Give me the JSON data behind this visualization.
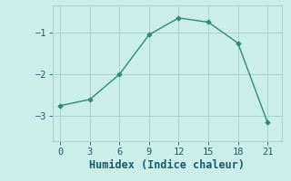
{
  "x": [
    0,
    3,
    6,
    9,
    12,
    15,
    18,
    21
  ],
  "y": [
    -2.75,
    -2.6,
    -2.0,
    -1.05,
    -0.65,
    -0.75,
    -1.25,
    -3.15
  ],
  "line_color": "#2e8b72",
  "marker_color": "#2e8b72",
  "bg_color": "#cceee8",
  "grid_color": "#aad4ce",
  "xlabel": "Humidex (Indice chaleur)",
  "xlabel_fontsize": 8.5,
  "xlabel_color": "#1a5a6a",
  "tick_color": "#1a5a6a",
  "xticks": [
    0,
    3,
    6,
    9,
    12,
    15,
    18,
    21
  ],
  "yticks": [
    -3,
    -2,
    -1
  ],
  "ylim": [
    -3.6,
    -0.35
  ],
  "xlim": [
    -0.8,
    22.5
  ]
}
